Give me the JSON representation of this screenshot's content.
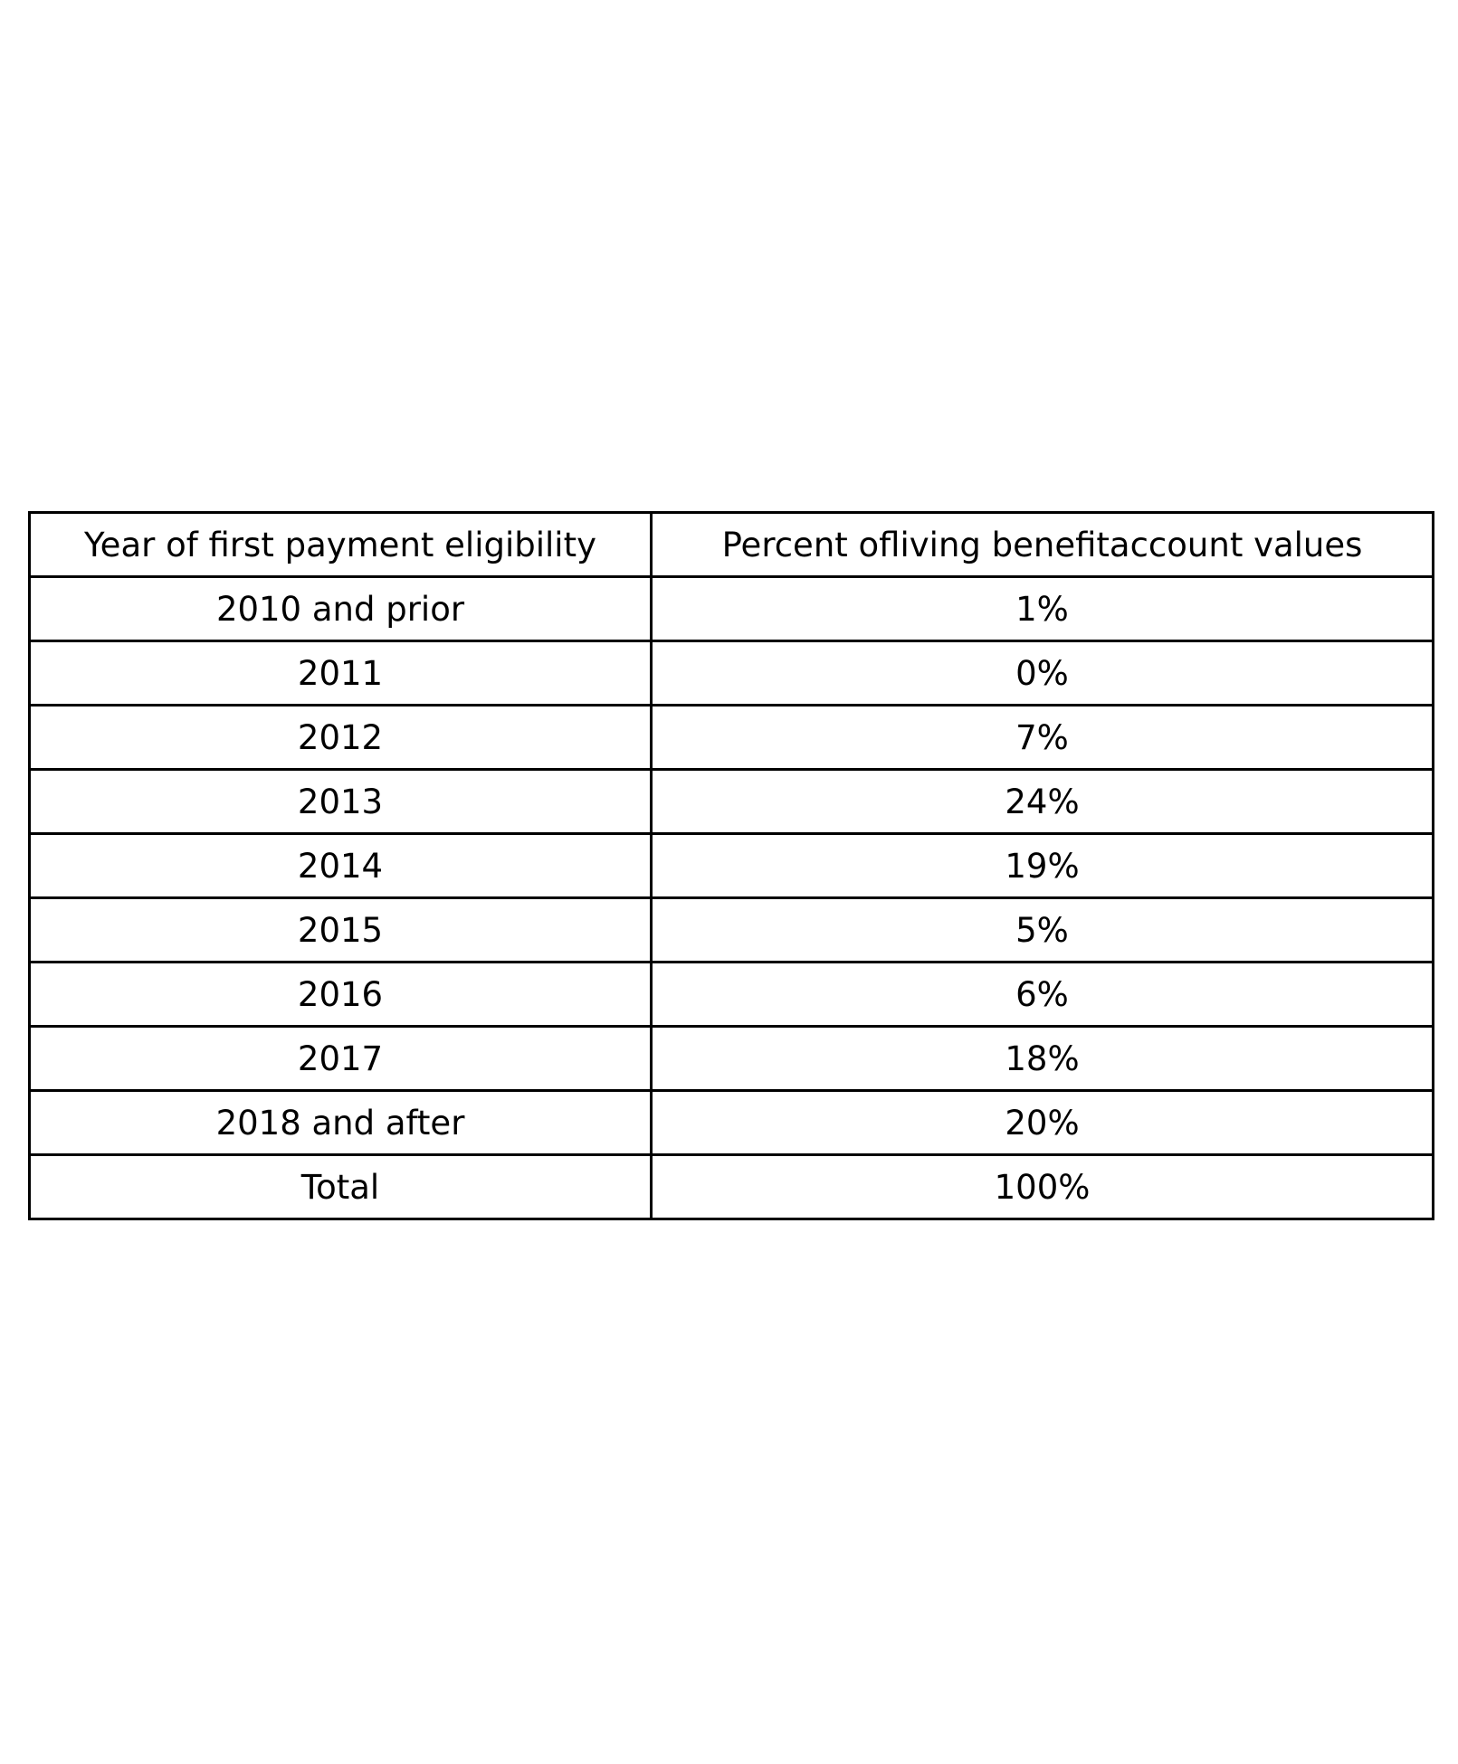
{
  "table": {
    "headers": [
      "Year of first payment eligibility",
      "Percent ofliving benefitaccount values"
    ],
    "rows": [
      [
        "2010 and prior",
        "1%"
      ],
      [
        "2011",
        "0%"
      ],
      [
        "2012",
        "7%"
      ],
      [
        "2013",
        "24%"
      ],
      [
        "2014",
        "19%"
      ],
      [
        "2015",
        "5%"
      ],
      [
        "2016",
        "6%"
      ],
      [
        "2017",
        "18%"
      ],
      [
        "2018 and after",
        "20%"
      ],
      [
        "Total",
        "100%"
      ]
    ]
  }
}
